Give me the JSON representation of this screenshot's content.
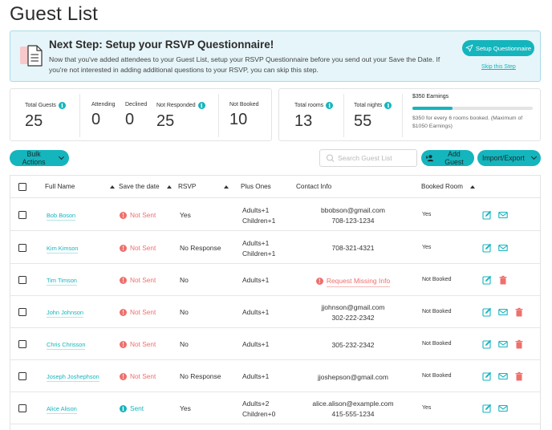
{
  "page_title": "Guest List",
  "banner": {
    "title": "Next Step: Setup your RSVP Questionnaire!",
    "text": "Now that you've added attendees to your Guest List, setup your RSVP Questionnaire before you send out your Save the Date. If you're not interested in adding additional questions to your RSVP, you can skip this step.",
    "setup_button": "Setup Questionnaire",
    "skip_link": "Skip this Step"
  },
  "stats": {
    "total_guests": {
      "label": "Total Guests",
      "value": "25"
    },
    "attending": {
      "label": "Attending",
      "value": "0"
    },
    "declined": {
      "label": "Declined",
      "value": "0"
    },
    "not_responded": {
      "label": "Not Responded",
      "value": "25"
    },
    "not_booked": {
      "label": "Not Booked",
      "value": "10"
    },
    "total_rooms": {
      "label": "Total rooms",
      "value": "13"
    },
    "total_nights": {
      "label": "Total nights",
      "value": "55"
    },
    "earnings": {
      "title": "$350 Earnings",
      "progress": 0.33,
      "text": "$350 for every 6 rooms booked. (Maximum of $1050 Earnings)"
    }
  },
  "toolbar": {
    "bulk_actions": "Bulk Actions",
    "search_placeholder": "Search Guest List",
    "add_guest": "Add Guest",
    "import_export": "Import/Export"
  },
  "table": {
    "headers": {
      "full_name": "Full Name",
      "save_the_date": "Save the date",
      "rsvp": "RSVP",
      "plus_ones": "Plus Ones",
      "contact_info": "Contact Info",
      "booked_room": "Booked Room"
    },
    "rows": [
      {
        "name": "Bob Boson",
        "save_date": "Not Sent",
        "rsvp": "Yes",
        "plus1": "Adults+1",
        "plus2": "Children+1",
        "contact1": "bbobson@gmail.com",
        "contact2": "708-123-1234",
        "booked": "Yes"
      },
      {
        "name": "Kim Kimson",
        "save_date": "Not Sent",
        "rsvp": "No Response",
        "plus1": "Adults+1",
        "plus2": "Children+1",
        "contact1": "708-321-4321",
        "contact2": "",
        "booked": "Yes"
      },
      {
        "name": "Tim Timson",
        "save_date": "Not Sent",
        "rsvp": "No",
        "plus1": "Adults+1",
        "plus2": "",
        "contact1": "Request Missing Info",
        "contact2": "",
        "booked": "Not Booked"
      },
      {
        "name": "John Johnson",
        "save_date": "Not Sent",
        "rsvp": "No",
        "plus1": "Adults+1",
        "plus2": "",
        "contact1": "jjohnson@gmail.com",
        "contact2": "302-222-2342",
        "booked": "Not Booked"
      },
      {
        "name": "Chris Chrisson",
        "save_date": "Not Sent",
        "rsvp": "No",
        "plus1": "Adults+1",
        "plus2": "",
        "contact1": "305-232-2342",
        "contact2": "",
        "booked": "Not Booked"
      },
      {
        "name": "Joseph Joshephson",
        "save_date": "Not Sent",
        "rsvp": "No Response",
        "plus1": "Adults+1",
        "plus2": "",
        "contact1": "jjoshepson@gmail.com",
        "contact2": "",
        "booked": "Not Booked"
      },
      {
        "name": "Alice Alison",
        "save_date": "Sent",
        "rsvp": "Yes",
        "plus1": "Adults+2",
        "plus2": "Children+0",
        "contact1": "alice.alison@example.com",
        "contact2": "415-555-1234",
        "booked": "Yes"
      }
    ]
  },
  "colors": {
    "accent": "#14b5bd",
    "warning": "#ef6f6c"
  }
}
